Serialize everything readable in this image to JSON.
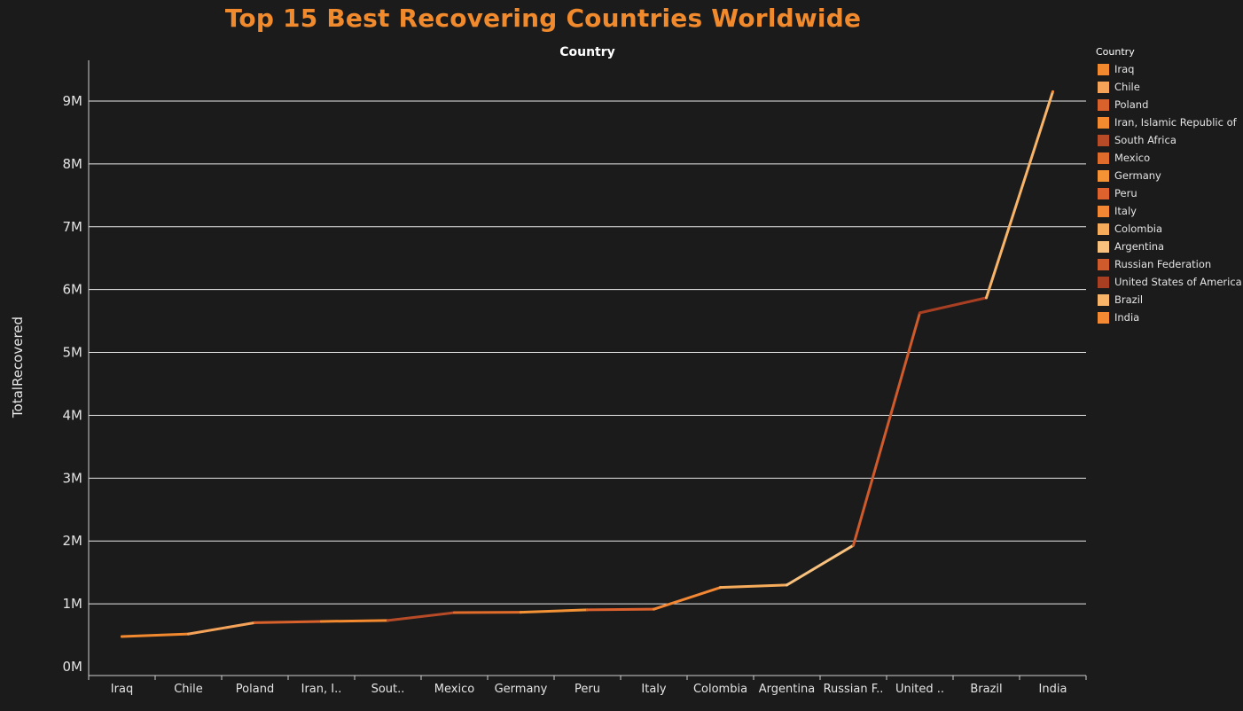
{
  "chart_data": {
    "type": "line",
    "title": "Top 15 Best Recovering Countries Worldwide",
    "x_header": "Country",
    "ylabel": "TotalRecovered",
    "categories": [
      "Iraq",
      "Chile",
      "Poland",
      "Iran, Islamic Republic of",
      "South Africa",
      "Mexico",
      "Germany",
      "Peru",
      "Italy",
      "Colombia",
      "Argentina",
      "Russian Federation",
      "United States of America",
      "Brazil",
      "India"
    ],
    "category_tick_labels": [
      "Iraq",
      "Chile",
      "Poland",
      "Iran, I..",
      "Sout..",
      "Mexico",
      "Germany",
      "Peru",
      "Italy",
      "Colombia",
      "Argentina",
      "Russian F..",
      "United ..",
      "Brazil",
      "India"
    ],
    "values": [
      480000,
      520000,
      700000,
      720000,
      735000,
      860000,
      865000,
      905000,
      915000,
      1260000,
      1300000,
      1930000,
      5630000,
      5870000,
      9150000
    ],
    "colors": [
      "#f2892f",
      "#f6a35a",
      "#d9612b",
      "#f48a30",
      "#b84b27",
      "#e06c2c",
      "#f49335",
      "#de622d",
      "#f38733",
      "#f7ac5c",
      "#f9c17e",
      "#cf5a2b",
      "#a83f22",
      "#f8b469",
      "#f38a33"
    ],
    "y_ticks": [
      0,
      1000000,
      2000000,
      3000000,
      4000000,
      5000000,
      6000000,
      7000000,
      8000000,
      9000000
    ],
    "y_tick_labels": [
      "0M",
      "1M",
      "2M",
      "3M",
      "4M",
      "5M",
      "6M",
      "7M",
      "8M",
      "9M"
    ],
    "ylim": [
      0,
      9000000
    ],
    "grid": true,
    "legend": {
      "title": "Country",
      "position": "right",
      "items": [
        {
          "label": "Iraq",
          "color": "#f2892f"
        },
        {
          "label": "Chile",
          "color": "#f6a35a"
        },
        {
          "label": "Poland",
          "color": "#d9612b"
        },
        {
          "label": "Iran, Islamic Republic of",
          "color": "#f48a30"
        },
        {
          "label": "South Africa",
          "color": "#b84b27"
        },
        {
          "label": "Mexico",
          "color": "#e06c2c"
        },
        {
          "label": "Germany",
          "color": "#f49335"
        },
        {
          "label": "Peru",
          "color": "#de622d"
        },
        {
          "label": "Italy",
          "color": "#f38733"
        },
        {
          "label": "Colombia",
          "color": "#f7ac5c"
        },
        {
          "label": "Argentina",
          "color": "#f9c17e"
        },
        {
          "label": "Russian Federation",
          "color": "#cf5a2b"
        },
        {
          "label": "United States of America",
          "color": "#a83f22"
        },
        {
          "label": "Brazil",
          "color": "#f8b469"
        },
        {
          "label": "India",
          "color": "#f38a33"
        }
      ]
    }
  },
  "theme": {
    "background": "#1b1b1b",
    "title_color": "#f08a2c",
    "grid_color": "#ffffff",
    "axis_color": "#cfcfcf"
  }
}
